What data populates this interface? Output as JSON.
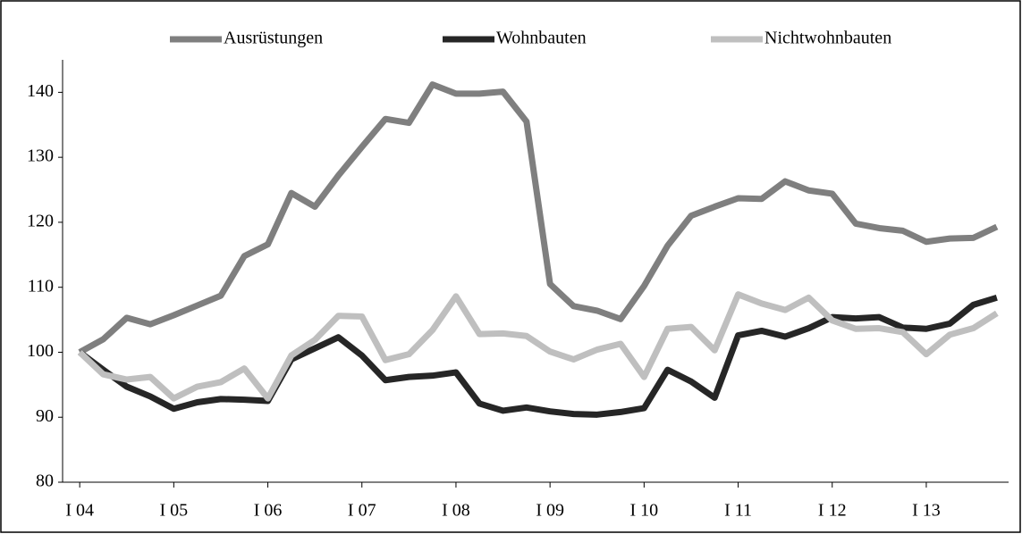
{
  "chart_data": {
    "type": "line",
    "categories": [
      "I 04",
      null,
      null,
      null,
      "I 05",
      null,
      null,
      null,
      "I 06",
      null,
      null,
      null,
      "I 07",
      null,
      null,
      null,
      "I 08",
      null,
      null,
      null,
      "I 09",
      null,
      null,
      null,
      "I 10",
      null,
      null,
      null,
      "I 11",
      null,
      null,
      null,
      "I 12",
      null,
      null,
      null,
      "I 13",
      null,
      null,
      null
    ],
    "series": [
      {
        "name": "Ausrüstungen",
        "color": "#7f7f7f",
        "values": [
          100,
          102,
          105.3,
          104.3,
          105.7,
          107.2,
          108.7,
          114.8,
          116.6,
          124.5,
          122.4,
          127.2,
          131.6,
          135.9,
          135.3,
          141.2,
          139.8,
          139.8,
          140.1,
          135.5,
          110.5,
          107.1,
          106.4,
          105.1,
          110.2,
          116.4,
          121,
          122.4,
          123.7,
          123.6,
          126.3,
          124.9,
          124.4,
          119.8,
          119.1,
          118.7,
          117,
          117.5,
          117.6,
          119.3
        ]
      },
      {
        "name": "Wohnbauten",
        "color": "#262626",
        "values": [
          100,
          97.3,
          94.7,
          93.2,
          91.3,
          92.3,
          92.8,
          92.7,
          92.5,
          98.9,
          100.6,
          102.3,
          99.5,
          95.7,
          96.2,
          96.4,
          96.9,
          92.1,
          91,
          91.5,
          90.9,
          90.5,
          90.4,
          90.8,
          91.4,
          97.3,
          95.5,
          93,
          102.6,
          103.3,
          102.4,
          103.7,
          105.4,
          105.2,
          105.4,
          103.8,
          103.6,
          104.4,
          107.3,
          108.4
        ]
      },
      {
        "name": "Nichtwohnbauten",
        "color": "#bfbfbf",
        "values": [
          100,
          96.6,
          95.8,
          96.2,
          92.9,
          94.7,
          95.4,
          97.5,
          92.9,
          99.5,
          101.9,
          105.6,
          105.5,
          98.8,
          99.7,
          103.4,
          108.6,
          102.8,
          102.9,
          102.5,
          100.1,
          98.9,
          100.4,
          101.3,
          96.2,
          103.6,
          103.9,
          100.3,
          108.9,
          107.5,
          106.5,
          108.4,
          104.9,
          103.6,
          103.7,
          103.1,
          99.7,
          102.7,
          103.7,
          106
        ]
      }
    ],
    "ylim": [
      80,
      145
    ],
    "yticks": [
      80,
      90,
      100,
      110,
      120,
      130,
      140
    ],
    "legend": "top"
  }
}
